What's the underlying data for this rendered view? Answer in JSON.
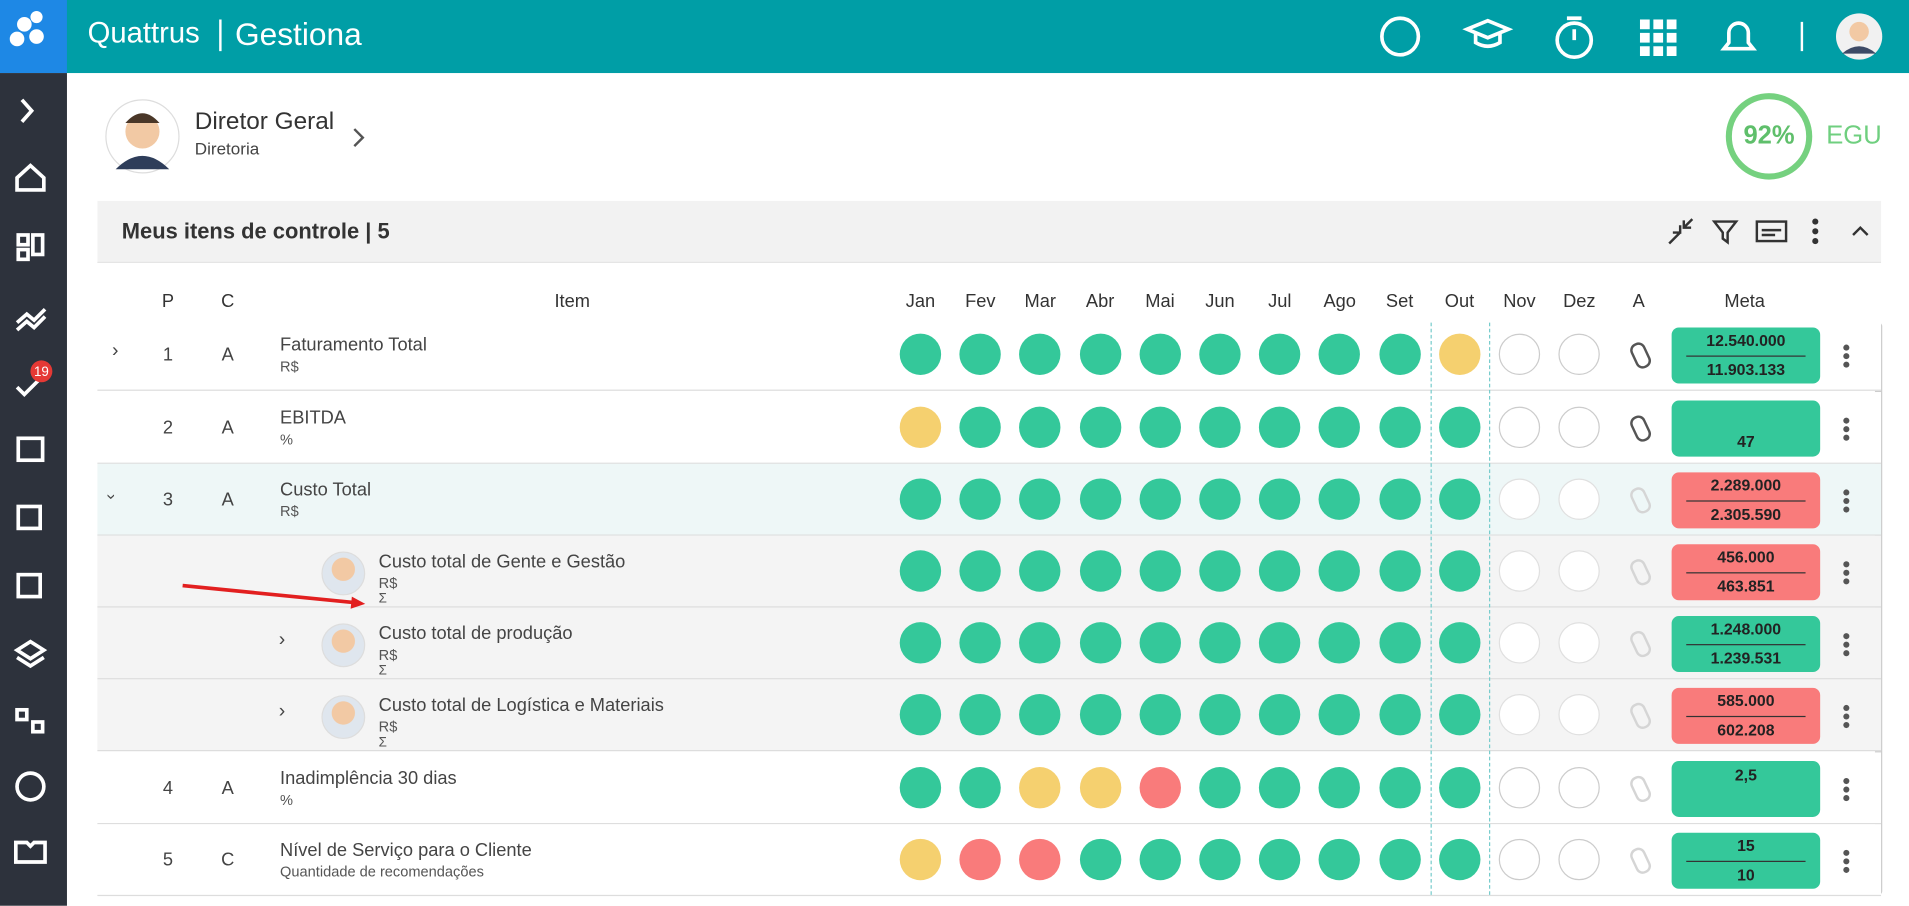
{
  "header": {
    "brand": "Quattrus",
    "module": "Gestiona",
    "badge": "19"
  },
  "profile": {
    "name": "Diretor Geral",
    "role": "Diretoria",
    "score": "92%",
    "score_label": "EGU"
  },
  "panel": {
    "title": "Meus itens de controle | 5"
  },
  "table": {
    "columns": [
      "P",
      "C",
      "Item",
      "Jan",
      "Fev",
      "Mar",
      "Abr",
      "Mai",
      "Jun",
      "Jul",
      "Ago",
      "Set",
      "Out",
      "Nov",
      "Dez",
      "A",
      "Meta"
    ],
    "rows": [
      {
        "p": "1",
        "c": "A",
        "item": "Faturamento Total",
        "unit": "R$",
        "status": [
          "g",
          "g",
          "g",
          "g",
          "g",
          "g",
          "g",
          "g",
          "g",
          "y",
          "e",
          "e"
        ],
        "meta_color": "green",
        "meta": [
          "12.540.000",
          "11.903.133"
        ]
      },
      {
        "p": "2",
        "c": "A",
        "item": "EBITDA",
        "unit": "%",
        "status": [
          "y",
          "g",
          "g",
          "g",
          "g",
          "g",
          "g",
          "g",
          "g",
          "g",
          "e",
          "e"
        ],
        "meta_color": "green",
        "meta": [
          "47"
        ]
      },
      {
        "p": "3",
        "c": "A",
        "item": "Custo Total",
        "unit": "R$",
        "status": [
          "g",
          "g",
          "g",
          "g",
          "g",
          "g",
          "g",
          "g",
          "g",
          "g",
          "e",
          "e"
        ],
        "meta_color": "red",
        "meta": [
          "2.289.000",
          "2.305.590"
        ]
      },
      {
        "item": "Custo total de Gente e Gestão",
        "unit": "R$",
        "sigma": "Σ",
        "status": [
          "g",
          "g",
          "g",
          "g",
          "g",
          "g",
          "g",
          "g",
          "g",
          "g",
          "e",
          "e"
        ],
        "meta_color": "red",
        "meta": [
          "456.000",
          "463.851"
        ]
      },
      {
        "item": "Custo total de produção",
        "unit": "R$",
        "sigma": "Σ",
        "status": [
          "g",
          "g",
          "g",
          "g",
          "g",
          "g",
          "g",
          "g",
          "g",
          "g",
          "e",
          "e"
        ],
        "meta_color": "green",
        "meta": [
          "1.248.000",
          "1.239.531"
        ]
      },
      {
        "item": "Custo total de Logística e Materiais",
        "unit": "R$",
        "sigma": "Σ",
        "status": [
          "g",
          "g",
          "g",
          "g",
          "g",
          "g",
          "g",
          "g",
          "g",
          "g",
          "e",
          "e"
        ],
        "meta_color": "red",
        "meta": [
          "585.000",
          "602.208"
        ]
      },
      {
        "p": "4",
        "c": "A",
        "item": "Inadimplência 30 dias",
        "unit": "%",
        "status": [
          "g",
          "g",
          "y",
          "y",
          "r",
          "g",
          "g",
          "g",
          "g",
          "g",
          "e",
          "e"
        ],
        "meta_color": "green",
        "meta": [
          "2,5"
        ]
      },
      {
        "p": "5",
        "c": "C",
        "item": "Nível de Serviço para o Cliente",
        "unit": "Quantidade de recomendações",
        "status": [
          "y",
          "r",
          "r",
          "g",
          "g",
          "g",
          "g",
          "g",
          "g",
          "g",
          "e",
          "e"
        ],
        "meta_color": "green",
        "meta": [
          "15",
          "10"
        ]
      }
    ]
  }
}
